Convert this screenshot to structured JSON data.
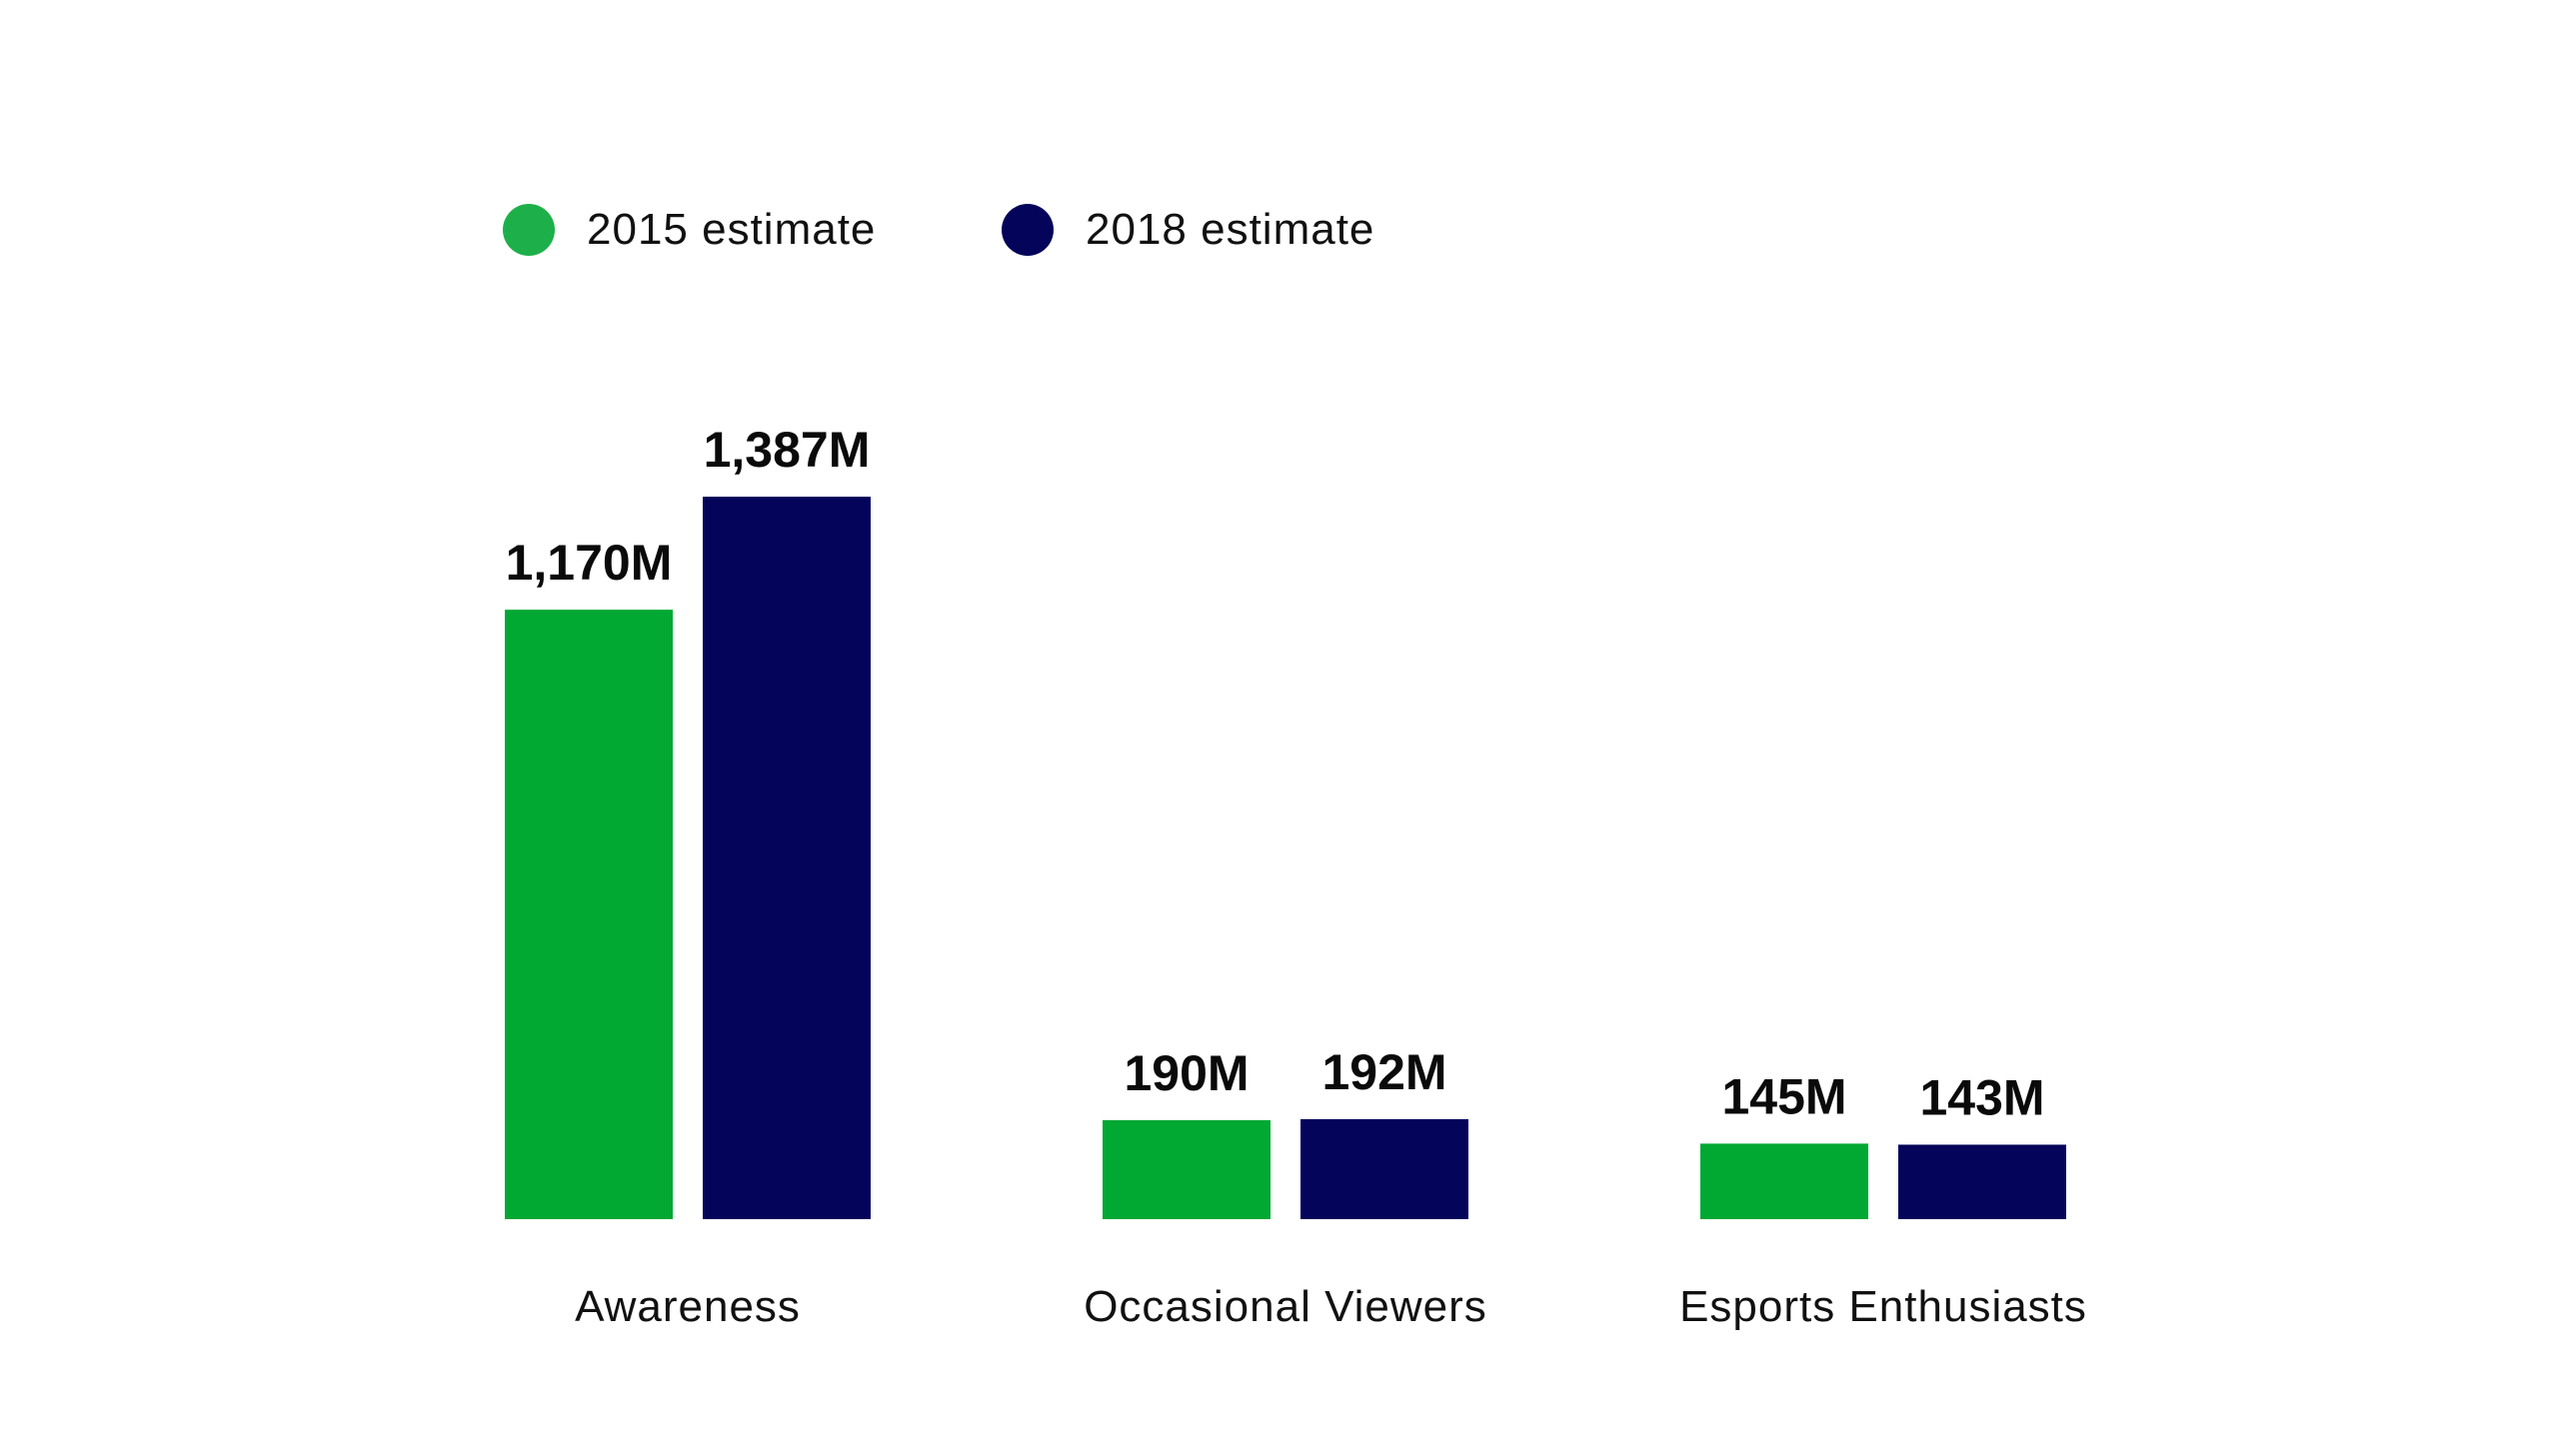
{
  "legend": {
    "items": [
      {
        "label": "2015 estimate",
        "color": "#01a832",
        "swatch_color": "#1db04a"
      },
      {
        "label": "2018 estimate",
        "color": "#03045a",
        "swatch_color": "#03045a"
      }
    ]
  },
  "chart_data": {
    "type": "bar",
    "categories": [
      "Awareness",
      "Occasional Viewers",
      "Esports Enthusiasts"
    ],
    "series": [
      {
        "name": "2015 estimate",
        "values": [
          1170,
          190,
          145
        ],
        "labels": [
          "1,170M",
          "190M",
          "145M"
        ],
        "color": "#01a832"
      },
      {
        "name": "2018 estimate",
        "values": [
          1387,
          192,
          143
        ],
        "labels": [
          "1,387M",
          "192M",
          "143M"
        ],
        "color": "#03045a"
      }
    ],
    "unit": "M",
    "ylim": [
      0,
      1387
    ],
    "grid": false,
    "legend_position": "top-left",
    "title": "",
    "xlabel": "",
    "ylabel": ""
  }
}
